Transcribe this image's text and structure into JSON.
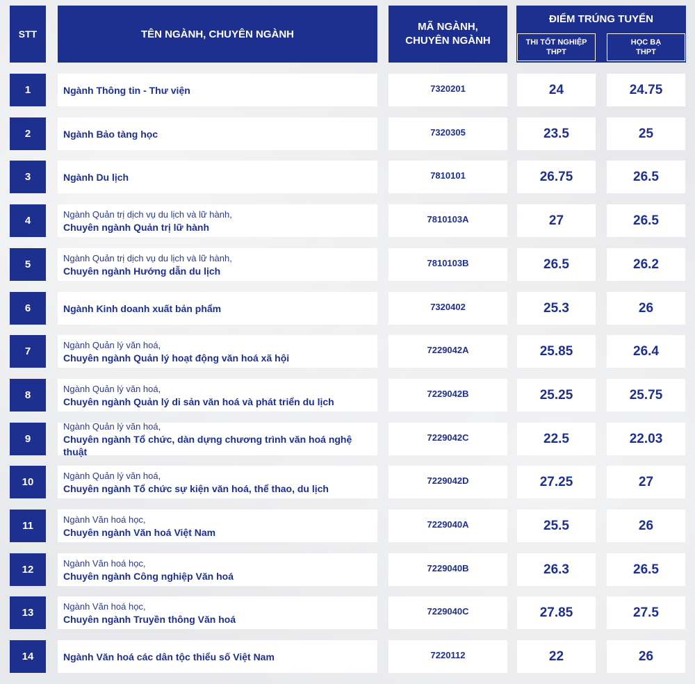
{
  "header": {
    "stt": "STT",
    "name": "TÊN NGÀNH, CHUYÊN NGÀNH",
    "code_line1": "MÃ NGÀNH,",
    "code_line2": "CHUYÊN NGÀNH",
    "score_title": "ĐIỂM TRÚNG TUYỂN",
    "score_col1_line1": "THI TỐT NGHIỆP",
    "score_col1_line2": "THPT",
    "score_col2_line1": "HỌC BẠ",
    "score_col2_line2": "THPT"
  },
  "colors": {
    "primary": "#1d2f8f",
    "cell": "#ffffff",
    "background": "#e7e8eb"
  },
  "rows": [
    {
      "stt": "1",
      "line1": "",
      "line2": "Ngành Thông tin - Thư viện",
      "code": "7320201",
      "exam": "24",
      "transcript": "24.75"
    },
    {
      "stt": "2",
      "line1": "",
      "line2": "Ngành Bảo tàng học",
      "code": "7320305",
      "exam": "23.5",
      "transcript": "25"
    },
    {
      "stt": "3",
      "line1": "",
      "line2": "Ngành Du lịch",
      "code": "7810101",
      "exam": "26.75",
      "transcript": "26.5"
    },
    {
      "stt": "4",
      "line1": "Ngành Quản trị dịch vụ du lịch và lữ hành,",
      "line2": "Chuyên ngành Quản trị lữ hành",
      "code": "7810103A",
      "exam": "27",
      "transcript": "26.5"
    },
    {
      "stt": "5",
      "line1": "Ngành Quản trị dịch vụ du lịch và lữ hành,",
      "line2": "Chuyên ngành Hướng dẫn du lịch",
      "code": "7810103B",
      "exam": "26.5",
      "transcript": "26.2"
    },
    {
      "stt": "6",
      "line1": "",
      "line2": "Ngành Kinh doanh xuất bản phẩm",
      "code": "7320402",
      "exam": "25.3",
      "transcript": "26"
    },
    {
      "stt": "7",
      "line1": "Ngành Quản lý văn hoá,",
      "line2": "Chuyên ngành Quản lý hoạt động văn hoá xã hội",
      "code": "7229042A",
      "exam": "25.85",
      "transcript": "26.4"
    },
    {
      "stt": "8",
      "line1": "Ngành Quản lý văn hoá,",
      "line2": "Chuyên ngành Quản lý di sản văn hoá và phát triển du lịch",
      "code": "7229042B",
      "exam": "25.25",
      "transcript": "25.75"
    },
    {
      "stt": "9",
      "line1": "Ngành Quản lý văn hoá,",
      "line2": "Chuyên ngành Tổ chức, dàn dựng chương trình văn hoá nghệ thuật",
      "code": "7229042C",
      "exam": "22.5",
      "transcript": "22.03"
    },
    {
      "stt": "10",
      "line1": "Ngành Quản lý văn hoá,",
      "line2": "Chuyên ngành Tổ chức sự kiện văn hoá, thể thao, du lịch",
      "code": "7229042D",
      "exam": "27.25",
      "transcript": "27"
    },
    {
      "stt": "11",
      "line1": "Ngành Văn hoá học,",
      "line2": "Chuyên ngành Văn hoá Việt Nam",
      "code": "7229040A",
      "exam": "25.5",
      "transcript": "26"
    },
    {
      "stt": "12",
      "line1": "Ngành Văn hoá học,",
      "line2": "Chuyên ngành Công nghiệp Văn hoá",
      "code": "7229040B",
      "exam": "26.3",
      "transcript": "26.5"
    },
    {
      "stt": "13",
      "line1": "Ngành Văn hoá học,",
      "line2": "Chuyên ngành Truyền thông Văn hoá",
      "code": "7229040C",
      "exam": "27.85",
      "transcript": "27.5"
    },
    {
      "stt": "14",
      "line1": "",
      "line2": "Ngành Văn hoá các dân tộc thiểu số Việt Nam",
      "code": "7220112",
      "exam": "22",
      "transcript": "26"
    }
  ]
}
